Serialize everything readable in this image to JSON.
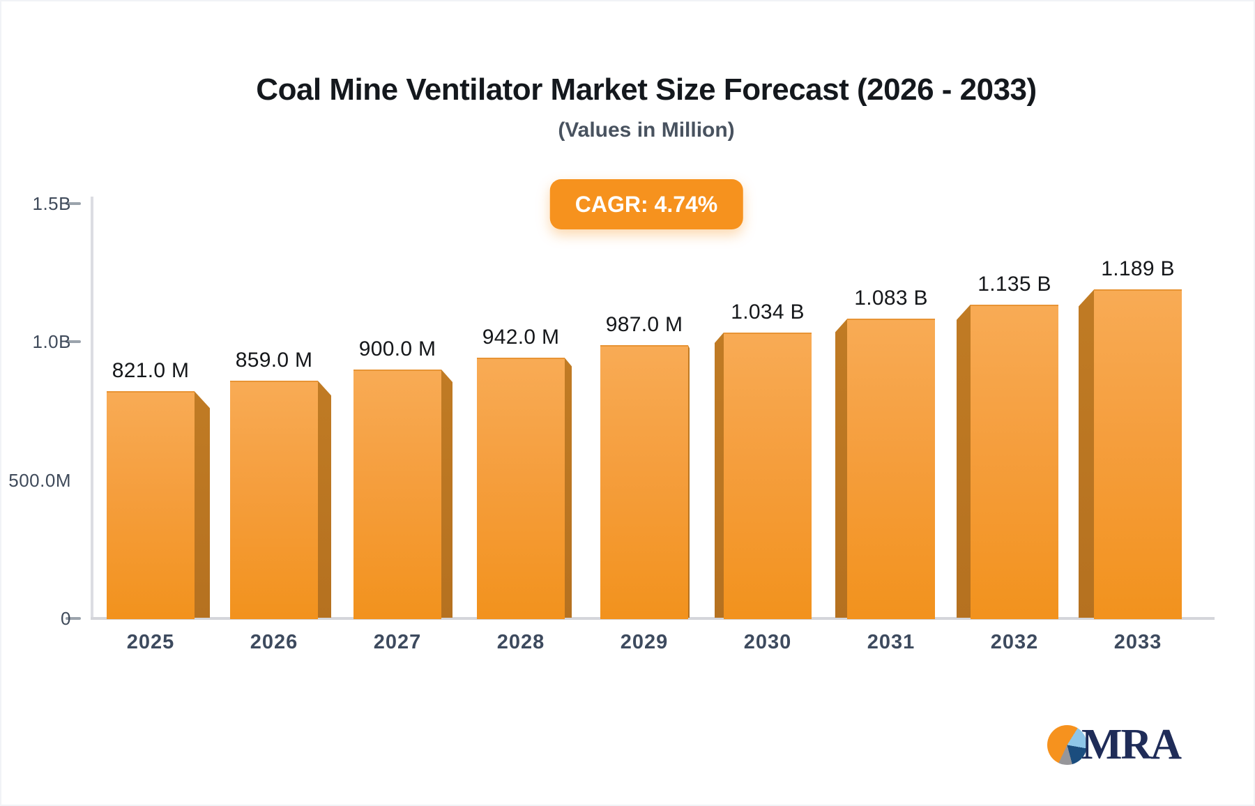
{
  "page": {
    "title": "Coal Mine Ventilator Market Size Forecast (2026 - 2033)",
    "subtitle": "(Values in Million)",
    "cagr_badge": "CAGR: 4.74%"
  },
  "chart_data": {
    "type": "bar",
    "title": "Coal Mine Ventilator Market Size Forecast (2026 - 2033)",
    "subtitle": "(Values in Million)",
    "cagr_percent": "4.74%",
    "categories": [
      "2025",
      "2026",
      "2027",
      "2028",
      "2029",
      "2030",
      "2031",
      "2032",
      "2033"
    ],
    "values_millions": [
      821,
      859,
      900,
      942,
      987,
      1034,
      1083,
      1135,
      1189
    ],
    "bar_labels": [
      "821.0 M",
      "859.0 M",
      "900.0 M",
      "942.0 M",
      "987.0 M",
      "1.034 B",
      "1.083 B",
      "1.135 B",
      "1.189 B"
    ],
    "y_axis": {
      "ticks": [
        "1.5B",
        "1.0B",
        "500.0M",
        "0"
      ],
      "tick_values_millions": [
        1500,
        1000,
        500,
        0
      ],
      "max_millions": 1500
    },
    "grid": false,
    "legend": false,
    "colors": {
      "bar_front_top": "#f8ab55",
      "bar_front_bottom": "#f2921d",
      "bar_side": "#b57120",
      "badge": "#f6921e",
      "axis": "#d4d5da",
      "tick_text": "#3f4a5a",
      "category_text": "#3d4a5e",
      "value_text": "#15171a"
    }
  },
  "logo": {
    "text": "MRA",
    "pie_colors": {
      "orange": "#f6921e",
      "light_blue": "#8fc6e8",
      "navy": "#1b4d7e",
      "gray": "#96969a"
    },
    "text_color": "#1f2c58"
  }
}
